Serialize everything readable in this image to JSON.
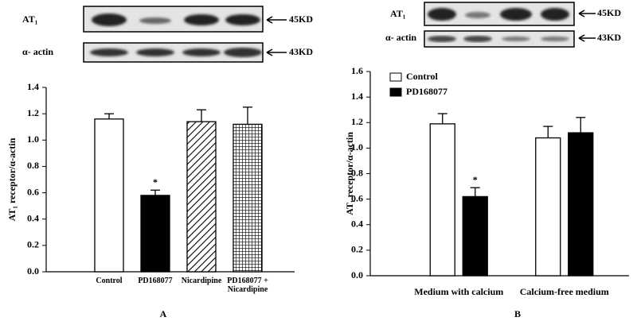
{
  "chart_data": [
    {
      "type": "bar",
      "panel": "A",
      "ylabel": "AT₁ receptor/α-actin",
      "blot": {
        "rows": [
          {
            "label": "AT₁",
            "size": "45KD"
          },
          {
            "label": "α- actin",
            "size": "43KD"
          }
        ]
      },
      "categories": [
        "Control",
        "PD168077",
        "Nicardipine",
        "PD168077 + Nicardipine"
      ],
      "values": [
        1.16,
        0.58,
        1.14,
        1.12
      ],
      "errors": [
        0.04,
        0.04,
        0.09,
        0.13
      ],
      "fills": [
        "white",
        "black",
        "diagonal-hatch",
        "cross-hatch"
      ],
      "annotation": "*",
      "ylim": [
        0,
        1.4
      ],
      "yticks": [
        {
          "value": 0,
          "label": "0.0"
        },
        0.2,
        0.4,
        0.6,
        0.8,
        {
          "value": 1,
          "label": "1.0"
        },
        1.2,
        1.4
      ]
    },
    {
      "type": "grouped-bar",
      "panel": "B",
      "ylabel": "AT₁ receptor/α-actin",
      "blot": {
        "rows": [
          {
            "label": "AT₁",
            "size": "45KD"
          },
          {
            "label": "α- actin",
            "size": "43KD"
          }
        ]
      },
      "categories": [
        "Medium with calcium",
        "Calcium-free medium"
      ],
      "series": [
        {
          "name": "Control",
          "color": "#ffffff",
          "values": [
            1.19,
            1.08
          ],
          "errors": [
            0.08,
            0.09
          ]
        },
        {
          "name": "PD168077",
          "color": "#000000",
          "values": [
            0.62,
            1.12
          ],
          "errors": [
            0.07,
            0.12
          ]
        }
      ],
      "annotation": "*",
      "legend": "upper left",
      "ylim": [
        0,
        1.6
      ],
      "yticks": [
        {
          "value": 0,
          "label": "0.0"
        },
        0.2,
        0.4,
        0.6,
        0.8,
        {
          "value": 1,
          "label": "1.0"
        },
        1.2,
        1.4,
        1.6
      ]
    }
  ]
}
